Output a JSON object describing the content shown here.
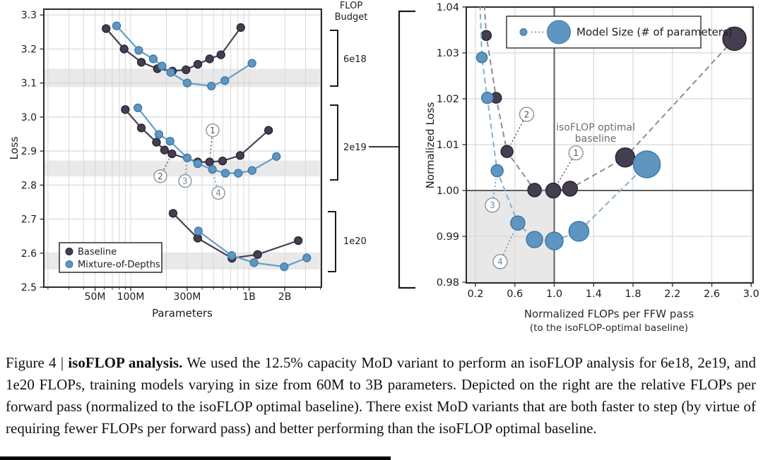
{
  "caption": {
    "label": "Figure 4",
    "separator": " | ",
    "title": "isoFLOP analysis.",
    "body": " We used the 12.5% capacity MoD variant to perform an isoFLOP analysis for 6e18, 2e19, and 1e20 FLOPs, training models varying in size from 60M to 3B parameters. Depicted on the right are the relative FLOPs per forward pass (normalized to the isoFLOP optimal baseline). There exist MoD variants that are both faster to step (by virtue of requiring fewer FLOPs per forward pass) and better performing than the isoFLOP optimal baseline."
  },
  "colors": {
    "baseline_line": "#474051",
    "baseline_fill": "#453e50",
    "baseline_edge": "#282233",
    "mod_line": "#669dc6",
    "mod_fill": "#5e96c1",
    "mod_edge": "#3d79a6",
    "dash_dark": "#8e8a97",
    "dash_blue": "#83b0d4",
    "band": "#e9e9e9",
    "shaded": "#e8e8e8",
    "grid": "#d8d8d8",
    "border": "#2b2b2b",
    "ref": "#5d5d5d",
    "ann_circle": "#909090",
    "ann_dark": "#55505f",
    "ann_blue": "#5d90b5",
    "muted": "#6e6e6e",
    "text": "#1c1c1c"
  },
  "chart_data": [
    {
      "type": "line",
      "panel": "left",
      "xlabel": "Parameters",
      "ylabel": "Loss",
      "x_scale": "log",
      "units": "parameters in millions",
      "x_ticks": [
        {
          "value_M": 50,
          "label": "50M"
        },
        {
          "value_M": 100,
          "label": "100M"
        },
        {
          "value_M": 300,
          "label": "300M"
        },
        {
          "value_M": 1000,
          "label": "1B"
        },
        {
          "value_M": 2000,
          "label": "2B"
        }
      ],
      "y_ticks": [
        2.5,
        2.6,
        2.7,
        2.8,
        2.9,
        3.0,
        3.1,
        3.2,
        3.3
      ],
      "ylim": [
        2.5,
        3.317
      ],
      "xlim_M": [
        18.5,
        4100
      ],
      "legend": [
        {
          "name": "Baseline"
        },
        {
          "name": "Mixture-of-Depths"
        }
      ],
      "flop_budget_header": [
        "FLOP",
        "Budget"
      ],
      "groups": [
        {
          "budget": "6e18",
          "band_loss": [
            3.088,
            3.142
          ],
          "baseline": [
            [
              62,
              3.26
            ],
            [
              88,
              3.2
            ],
            [
              123,
              3.161
            ],
            [
              168,
              3.142
            ],
            [
              225,
              3.135
            ],
            [
              293,
              3.139
            ],
            [
              369,
              3.155
            ],
            [
              464,
              3.171
            ],
            [
              578,
              3.183
            ],
            [
              850,
              3.263
            ]
          ],
          "mixture_of_depths": [
            [
              76,
              3.268
            ],
            [
              117,
              3.196
            ],
            [
              155,
              3.171
            ],
            [
              184,
              3.15
            ],
            [
              218,
              3.131
            ],
            [
              300,
              3.1
            ],
            [
              480,
              3.091
            ],
            [
              624,
              3.107
            ],
            [
              1057,
              3.158
            ]
          ]
        },
        {
          "budget": "2e19",
          "band_loss": [
            2.826,
            2.872
          ],
          "baseline": [
            [
              90,
              3.022
            ],
            [
              123,
              2.968
            ],
            [
              165,
              2.926
            ],
            [
              193,
              2.903
            ],
            [
              223,
              2.892
            ],
            [
              368,
              2.868
            ],
            [
              464,
              2.868
            ],
            [
              597,
              2.871
            ],
            [
              840,
              2.887
            ],
            [
              1460,
              2.961
            ]
          ],
          "mixture_of_depths": [
            [
              115,
              3.027
            ],
            [
              173,
              2.949
            ],
            [
              215,
              2.929
            ],
            [
              300,
              2.88
            ],
            [
              368,
              2.863
            ],
            [
              490,
              2.846
            ],
            [
              630,
              2.835
            ],
            [
              810,
              2.835
            ],
            [
              1060,
              2.843
            ],
            [
              1700,
              2.884
            ]
          ]
        },
        {
          "budget": "1e20",
          "band_loss": [
            2.552,
            2.598
          ],
          "baseline": [
            [
              228,
              2.717
            ],
            [
              368,
              2.644
            ],
            [
              716,
              2.585
            ],
            [
              1180,
              2.596
            ],
            [
              2600,
              2.637
            ]
          ],
          "mixture_of_depths": [
            [
              373,
              2.665
            ],
            [
              713,
              2.593
            ],
            [
              1100,
              2.572
            ],
            [
              1980,
              2.56
            ],
            [
              3070,
              2.586
            ]
          ]
        }
      ],
      "annotations": [
        {
          "n": "1",
          "series": "baseline",
          "circle_at": [
            492,
            2.961
          ],
          "points_to": [
            464,
            2.868
          ]
        },
        {
          "n": "2",
          "series": "baseline",
          "circle_at": [
            178,
            2.826
          ],
          "points_to": [
            223,
            2.892
          ]
        },
        {
          "n": "3",
          "series": "mixture_of_depths",
          "circle_at": [
            288,
            2.812
          ],
          "points_to": [
            300,
            2.88
          ]
        },
        {
          "n": "4",
          "series": "mixture_of_depths",
          "circle_at": [
            550,
            2.777
          ],
          "points_to": [
            490,
            2.846
          ]
        }
      ]
    },
    {
      "type": "scatter",
      "panel": "right",
      "xlabel": [
        "Normalized FLOPs per FFW pass",
        "(to the isoFLOP-optimal baseline)"
      ],
      "ylabel": "Normalized Loss",
      "x_ticks": [
        0.2,
        0.6,
        1.0,
        1.4,
        1.8,
        2.2,
        2.6,
        3.0
      ],
      "y_ticks": [
        0.98,
        0.99,
        1.0,
        1.01,
        1.02,
        1.03,
        1.04
      ],
      "xlim": [
        0.107,
        3.02
      ],
      "ylim": [
        0.98,
        1.0403
      ],
      "ref_lines": {
        "x": 1.0,
        "y": 1.0
      },
      "shaded_region": {
        "x": [
          0.107,
          1.0
        ],
        "y": [
          0.98,
          1.0
        ]
      },
      "legend_label": "Model Size (# of parameters)",
      "marker_note": "third value = marker radius px, proportional to model size",
      "series": [
        {
          "name": "Baseline",
          "line_start": [
            0.285,
            1.0425
          ],
          "points": [
            [
              0.31,
              1.0338,
              7
            ],
            [
              0.41,
              1.0202,
              7.5
            ],
            [
              0.52,
              1.0085,
              8.5
            ],
            [
              0.8,
              1.0001,
              9.5
            ],
            [
              0.99,
              1.0,
              10.5
            ],
            [
              1.16,
              1.0004,
              10.5
            ],
            [
              1.72,
              1.0072,
              13.5
            ],
            [
              2.83,
              1.0331,
              16.5
            ]
          ]
        },
        {
          "name": "Mixture-of-Depths",
          "line_start": [
            0.243,
            1.0425
          ],
          "points": [
            [
              0.265,
              1.029,
              7.5
            ],
            [
              0.32,
              1.0202,
              8
            ],
            [
              0.42,
              1.0043,
              8.5
            ],
            [
              0.63,
              0.9929,
              10
            ],
            [
              0.8,
              0.9893,
              11.5
            ],
            [
              1.0,
              0.989,
              12.5
            ],
            [
              1.25,
              0.9911,
              14
            ],
            [
              1.94,
              1.0057,
              19
            ]
          ]
        }
      ],
      "annotations": [
        {
          "n": "1",
          "series": "Baseline",
          "circle_at": [
            1.22,
            1.0082
          ],
          "points_to": [
            0.99,
            1.0
          ]
        },
        {
          "n": "2",
          "series": "Baseline",
          "circle_at": [
            0.72,
            1.0166
          ],
          "points_to": [
            0.52,
            1.0085
          ]
        },
        {
          "n": "3",
          "series": "Mixture-of-Depths",
          "circle_at": [
            0.372,
            0.9968
          ],
          "points_to": [
            0.42,
            1.0043
          ]
        },
        {
          "n": "4",
          "series": "Mixture-of-Depths",
          "circle_at": [
            0.451,
            0.9845
          ],
          "points_to": [
            0.63,
            0.9929
          ]
        }
      ],
      "text_label": {
        "lines": [
          "isoFLOP optimal",
          "baseline"
        ],
        "at": [
          1.42,
          1.0137
        ]
      }
    }
  ]
}
